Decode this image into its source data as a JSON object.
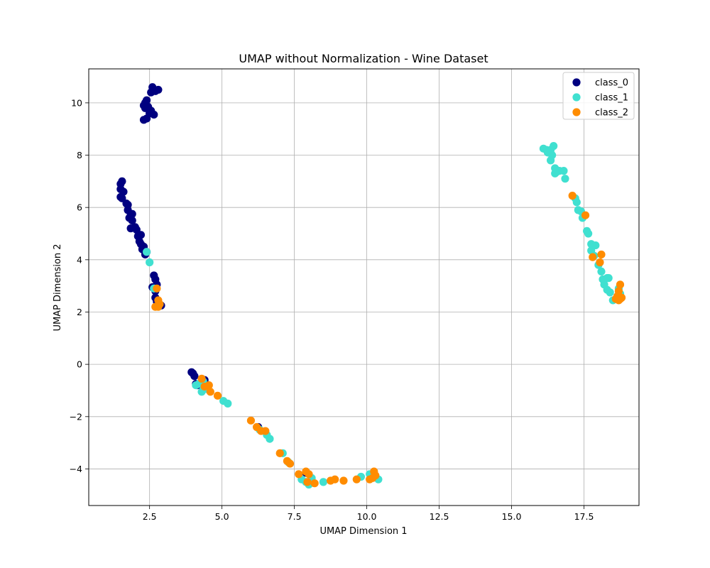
{
  "chart_data": {
    "type": "scatter",
    "title": "UMAP without Normalization - Wine Dataset",
    "xlabel": "UMAP Dimension 1",
    "ylabel": "UMAP Dimension 2",
    "xlim": [
      0.4,
      19.4
    ],
    "ylim": [
      -5.4,
      11.3
    ],
    "xticks": [
      2.5,
      5.0,
      7.5,
      10.0,
      12.5,
      15.0,
      17.5
    ],
    "xtick_labels": [
      "2.5",
      "5.0",
      "7.5",
      "10.0",
      "12.5",
      "15.0",
      "17.5"
    ],
    "yticks": [
      -4,
      -2,
      0,
      2,
      4,
      6,
      8,
      10
    ],
    "ytick_labels": [
      "−4",
      "−2",
      "0",
      "2",
      "4",
      "6",
      "8",
      "10"
    ],
    "grid": true,
    "legend_position": "top-right",
    "series": [
      {
        "name": "class_0",
        "color": "#000080",
        "points": [
          [
            2.6,
            10.6
          ],
          [
            2.8,
            10.5
          ],
          [
            2.7,
            10.45
          ],
          [
            2.55,
            10.4
          ],
          [
            2.4,
            10.1
          ],
          [
            2.35,
            10.0
          ],
          [
            2.3,
            9.9
          ],
          [
            2.35,
            9.8
          ],
          [
            2.45,
            9.85
          ],
          [
            2.5,
            9.6
          ],
          [
            2.55,
            9.7
          ],
          [
            2.65,
            9.55
          ],
          [
            2.4,
            9.4
          ],
          [
            2.3,
            9.35
          ],
          [
            1.5,
            6.9
          ],
          [
            1.55,
            7.0
          ],
          [
            1.5,
            6.7
          ],
          [
            1.6,
            6.6
          ],
          [
            1.5,
            6.4
          ],
          [
            1.55,
            6.35
          ],
          [
            1.7,
            6.15
          ],
          [
            1.75,
            6.1
          ],
          [
            1.75,
            5.9
          ],
          [
            1.85,
            5.7
          ],
          [
            1.9,
            5.75
          ],
          [
            1.8,
            5.6
          ],
          [
            1.9,
            5.5
          ],
          [
            1.85,
            5.2
          ],
          [
            2.0,
            5.25
          ],
          [
            2.05,
            5.15
          ],
          [
            2.1,
            4.9
          ],
          [
            2.2,
            4.95
          ],
          [
            2.15,
            4.7
          ],
          [
            2.2,
            4.6
          ],
          [
            2.3,
            4.5
          ],
          [
            2.25,
            4.4
          ],
          [
            2.4,
            4.3
          ],
          [
            2.35,
            4.2
          ],
          [
            2.65,
            3.4
          ],
          [
            2.7,
            3.25
          ],
          [
            2.75,
            3.05
          ],
          [
            2.6,
            2.95
          ],
          [
            2.7,
            2.8
          ],
          [
            2.7,
            2.55
          ],
          [
            2.75,
            2.4
          ],
          [
            2.9,
            2.25
          ],
          [
            2.8,
            2.3
          ],
          [
            3.95,
            -0.3
          ],
          [
            4.0,
            -0.35
          ],
          [
            4.05,
            -0.45
          ],
          [
            4.1,
            -0.75
          ],
          [
            4.15,
            -0.8
          ],
          [
            4.3,
            -0.7
          ],
          [
            4.4,
            -0.6
          ],
          [
            6.25,
            -2.4
          ],
          [
            7.9,
            -4.15
          ]
        ]
      },
      {
        "name": "class_1",
        "color": "#40e0d0",
        "points": [
          [
            2.4,
            4.3
          ],
          [
            2.5,
            3.9
          ],
          [
            2.65,
            2.9
          ],
          [
            4.1,
            -0.8
          ],
          [
            4.2,
            -0.75
          ],
          [
            4.3,
            -1.05
          ],
          [
            4.5,
            -0.95
          ],
          [
            4.35,
            -0.65
          ],
          [
            5.05,
            -1.4
          ],
          [
            5.2,
            -1.5
          ],
          [
            6.3,
            -2.5
          ],
          [
            6.55,
            -2.7
          ],
          [
            6.65,
            -2.85
          ],
          [
            7.1,
            -3.4
          ],
          [
            7.3,
            -3.75
          ],
          [
            7.75,
            -4.4
          ],
          [
            7.9,
            -4.5
          ],
          [
            8.0,
            -4.6
          ],
          [
            8.1,
            -4.35
          ],
          [
            8.5,
            -4.5
          ],
          [
            9.8,
            -4.3
          ],
          [
            10.1,
            -4.2
          ],
          [
            10.4,
            -4.4
          ],
          [
            16.1,
            8.25
          ],
          [
            16.2,
            8.2
          ],
          [
            16.25,
            8.1
          ],
          [
            16.35,
            8.2
          ],
          [
            16.45,
            8.35
          ],
          [
            16.4,
            8.0
          ],
          [
            16.35,
            7.8
          ],
          [
            16.5,
            7.5
          ],
          [
            16.55,
            7.35
          ],
          [
            16.65,
            7.4
          ],
          [
            16.8,
            7.4
          ],
          [
            16.85,
            7.1
          ],
          [
            16.5,
            7.3
          ],
          [
            17.2,
            6.35
          ],
          [
            17.25,
            6.2
          ],
          [
            17.3,
            5.9
          ],
          [
            17.4,
            5.85
          ],
          [
            17.45,
            5.6
          ],
          [
            17.6,
            5.1
          ],
          [
            17.65,
            5.0
          ],
          [
            17.75,
            4.6
          ],
          [
            17.9,
            4.55
          ],
          [
            17.75,
            4.35
          ],
          [
            17.85,
            4.15
          ],
          [
            18.0,
            3.8
          ],
          [
            18.1,
            3.55
          ],
          [
            18.15,
            3.25
          ],
          [
            18.3,
            3.3
          ],
          [
            18.35,
            3.3
          ],
          [
            18.2,
            3.05
          ],
          [
            18.3,
            2.85
          ],
          [
            18.4,
            2.75
          ],
          [
            18.5,
            2.45
          ],
          [
            18.7,
            2.9
          ],
          [
            18.75,
            2.7
          ]
        ]
      },
      {
        "name": "class_2",
        "color": "#ff8c00",
        "points": [
          [
            2.75,
            2.9
          ],
          [
            2.8,
            2.45
          ],
          [
            2.85,
            2.3
          ],
          [
            2.7,
            2.2
          ],
          [
            2.8,
            2.2
          ],
          [
            4.3,
            -0.55
          ],
          [
            4.4,
            -0.85
          ],
          [
            4.55,
            -0.8
          ],
          [
            4.6,
            -1.05
          ],
          [
            4.85,
            -1.2
          ],
          [
            6.0,
            -2.15
          ],
          [
            6.2,
            -2.4
          ],
          [
            6.35,
            -2.55
          ],
          [
            6.5,
            -2.55
          ],
          [
            7.0,
            -3.4
          ],
          [
            7.25,
            -3.7
          ],
          [
            7.35,
            -3.8
          ],
          [
            7.65,
            -4.2
          ],
          [
            7.9,
            -4.1
          ],
          [
            8.0,
            -4.2
          ],
          [
            7.95,
            -4.5
          ],
          [
            8.2,
            -4.55
          ],
          [
            8.75,
            -4.45
          ],
          [
            8.9,
            -4.4
          ],
          [
            9.2,
            -4.45
          ],
          [
            9.65,
            -4.4
          ],
          [
            10.1,
            -4.4
          ],
          [
            10.2,
            -4.35
          ],
          [
            10.25,
            -4.1
          ],
          [
            10.3,
            -4.25
          ],
          [
            17.1,
            6.45
          ],
          [
            17.55,
            5.7
          ],
          [
            17.8,
            4.1
          ],
          [
            18.1,
            4.2
          ],
          [
            18.05,
            3.9
          ],
          [
            18.75,
            3.05
          ],
          [
            18.7,
            2.8
          ],
          [
            18.65,
            2.6
          ],
          [
            18.8,
            2.55
          ],
          [
            18.6,
            2.5
          ],
          [
            18.7,
            2.45
          ],
          [
            18.75,
            2.5
          ]
        ]
      }
    ]
  }
}
